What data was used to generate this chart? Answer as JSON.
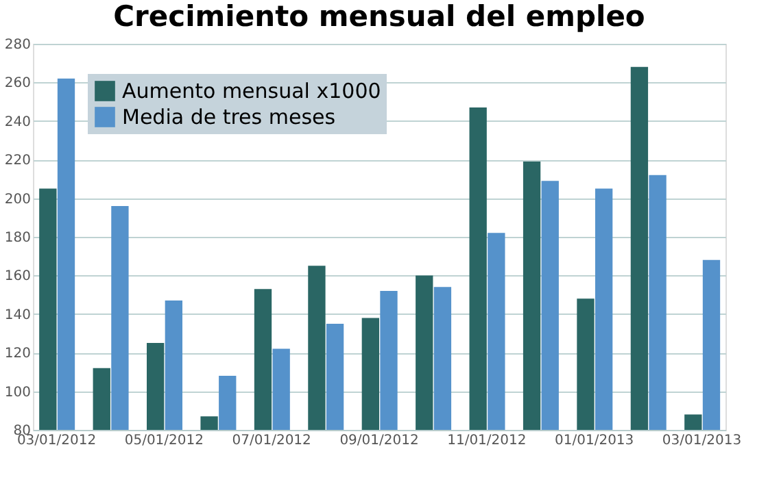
{
  "chart_data": {
    "type": "bar",
    "title": "Crecimiento mensual del empleo",
    "categories": [
      "03/01/2012",
      null,
      "05/01/2012",
      null,
      "07/01/2012",
      null,
      "09/01/2012",
      null,
      "11/01/2012",
      null,
      "01/01/2013",
      null,
      "03/01/2013"
    ],
    "series": [
      {
        "name": "Aumento mensual x1000",
        "color": "#2a6664",
        "values": [
          205,
          112,
          125,
          87,
          153,
          165,
          138,
          160,
          247,
          219,
          148,
          268,
          88
        ]
      },
      {
        "name": "Media de tres meses",
        "color": "#5592cb",
        "values": [
          262,
          196,
          147,
          108,
          122,
          135,
          152,
          154,
          182,
          209,
          205,
          212,
          168
        ]
      }
    ],
    "ylim": [
      80,
      280
    ],
    "yticks": [
      80,
      100,
      120,
      140,
      160,
      180,
      200,
      220,
      240,
      260,
      280
    ],
    "grid": "y",
    "legend": "top left"
  }
}
